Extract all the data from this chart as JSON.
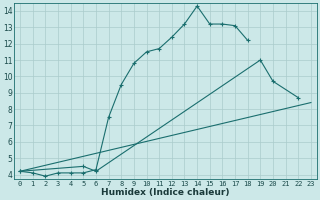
{
  "xlabel": "Humidex (Indice chaleur)",
  "background_color": "#cce8e8",
  "grid_color": "#aacccc",
  "line_color": "#1a6e6e",
  "xlim": [
    -0.5,
    23.5
  ],
  "ylim": [
    3.7,
    14.5
  ],
  "xticks": [
    0,
    1,
    2,
    3,
    4,
    5,
    6,
    7,
    8,
    9,
    10,
    11,
    12,
    13,
    14,
    15,
    16,
    17,
    18,
    19,
    20,
    21,
    22,
    23
  ],
  "yticks": [
    4,
    5,
    6,
    7,
    8,
    9,
    10,
    11,
    12,
    13,
    14
  ],
  "line1_x": [
    0,
    1,
    2,
    3,
    4,
    5,
    6,
    7,
    8,
    9,
    10,
    11,
    12,
    13,
    14,
    15,
    16,
    17,
    18
  ],
  "line1_y": [
    4.2,
    4.1,
    3.9,
    4.1,
    4.1,
    4.1,
    4.3,
    7.5,
    9.5,
    10.8,
    11.5,
    11.7,
    12.4,
    13.2,
    14.3,
    13.2,
    13.2,
    13.1,
    12.2
  ],
  "line2_x": [
    0,
    5,
    6,
    19,
    20,
    22
  ],
  "line2_y": [
    4.2,
    4.5,
    4.2,
    11.0,
    9.7,
    8.7
  ],
  "line3_x": [
    0,
    23
  ],
  "line3_y": [
    4.2,
    8.4
  ],
  "tick_fontsize": 5.0,
  "xlabel_fontsize": 6.5
}
